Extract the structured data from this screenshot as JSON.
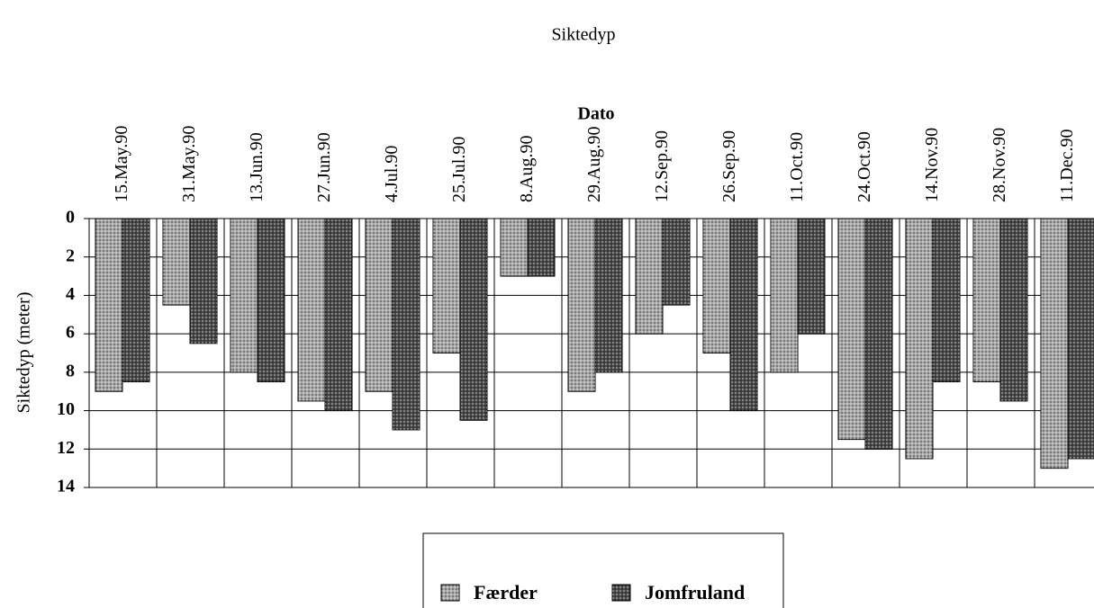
{
  "chart_data": {
    "type": "bar",
    "title": "Siktedyp",
    "x_label": "Dato",
    "y_label": "Siktedyp (meter)",
    "categories": [
      "15.May.90",
      "31.May.90",
      "13.Jun.90",
      "27.Jun.90",
      "4.Jul.90",
      "25.Jul.90",
      "8.Aug.90",
      "29.Aug.90",
      "12.Sep.90",
      "26.Sep.90",
      "11.Oct.90",
      "24.Oct.90",
      "14.Nov.90",
      "28.Nov.90",
      "11.Dec.90"
    ],
    "series": [
      {
        "name": "Færder",
        "color": "#a9a9a9",
        "values": [
          9,
          4.5,
          8,
          9.5,
          9,
          7,
          3,
          9,
          6,
          7,
          8,
          11.5,
          12.5,
          8.5,
          13
        ]
      },
      {
        "name": "Jomfruland",
        "color": "#4a4a4a",
        "values": [
          8.5,
          6.5,
          8.5,
          10,
          11,
          10.5,
          3,
          8,
          4.5,
          10,
          6,
          12,
          8.5,
          9.5,
          12.5
        ]
      }
    ],
    "ylim": [
      0,
      14
    ],
    "yticks": [
      0,
      2,
      4,
      6,
      8,
      10,
      12,
      14
    ],
    "y_inverted": true,
    "grid": true
  }
}
